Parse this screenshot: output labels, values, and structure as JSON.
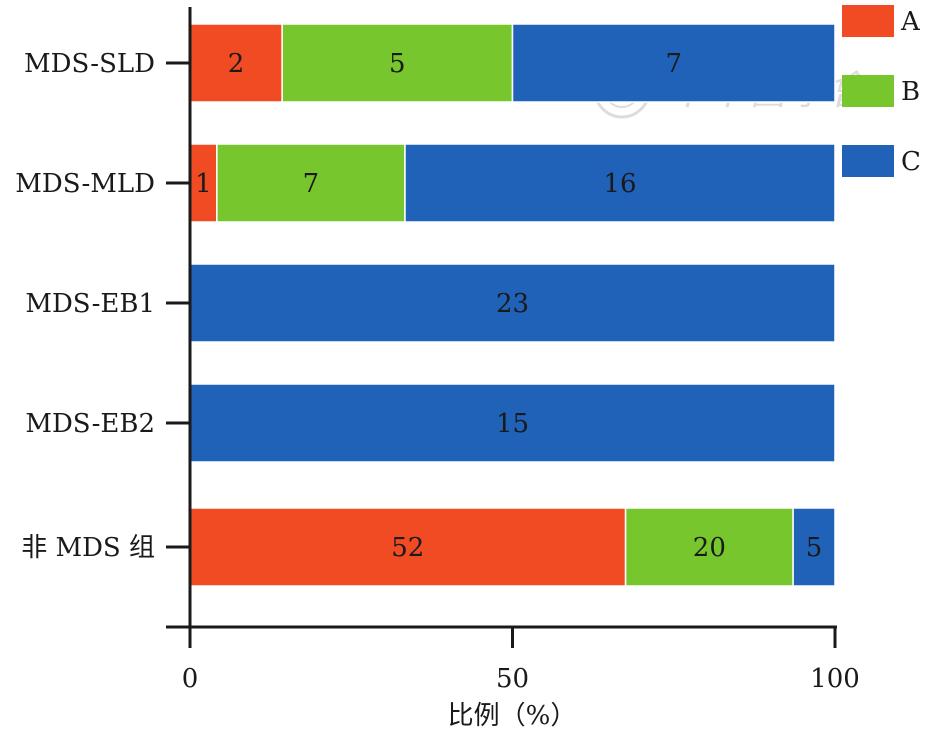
{
  "chart_data": {
    "type": "bar",
    "orientation": "horizontal",
    "stacked": true,
    "percent_stacked": true,
    "categories": [
      "MDS-SLD",
      "MDS-MLD",
      "MDS-EB1",
      "MDS-EB2",
      "非 MDS 组"
    ],
    "series": [
      {
        "name": "A",
        "color": "#f04b23",
        "values": [
          2,
          1,
          0,
          0,
          52
        ]
      },
      {
        "name": "B",
        "color": "#77c62e",
        "values": [
          5,
          7,
          0,
          0,
          20
        ]
      },
      {
        "name": "C",
        "color": "#1f62b8",
        "values": [
          7,
          16,
          23,
          15,
          5
        ]
      }
    ],
    "xlabel": "比例（%）",
    "ylabel": "",
    "xlim": [
      0,
      100
    ],
    "xticks": [
      0,
      50,
      100
    ],
    "grid": false,
    "legend_position": "top-right",
    "watermark": "中華醫學會"
  }
}
